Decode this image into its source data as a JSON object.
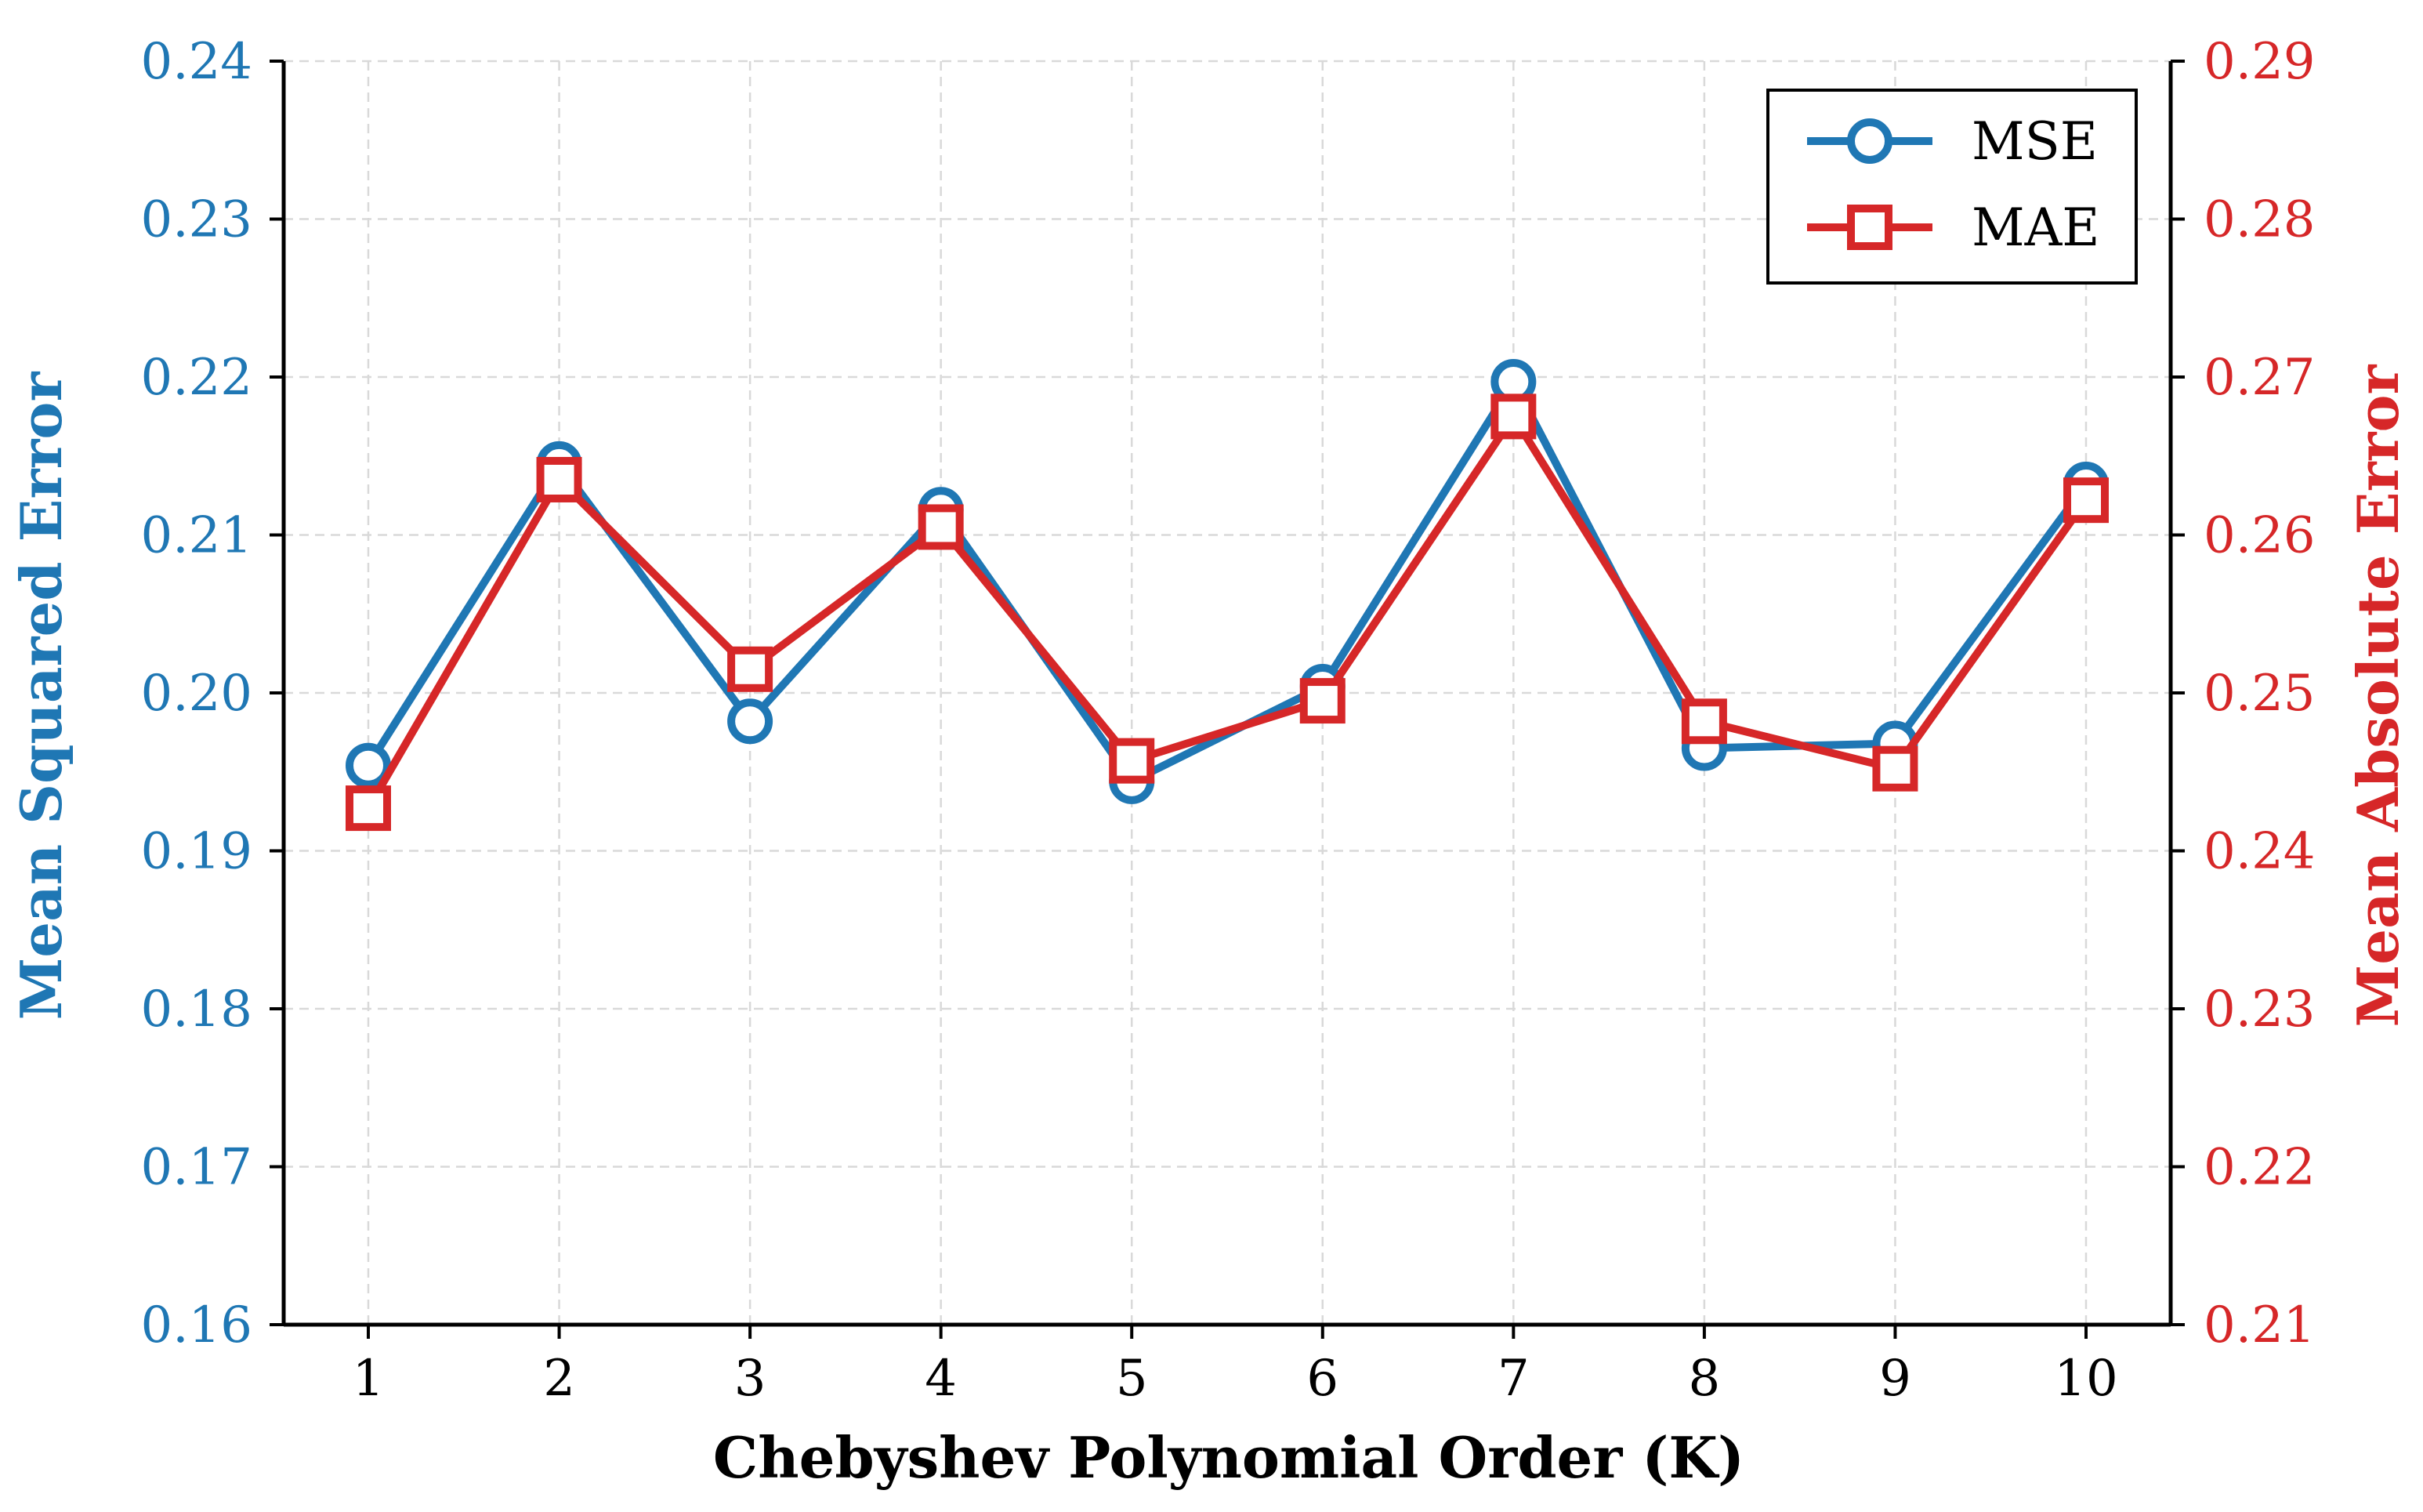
{
  "chart_data": {
    "type": "line",
    "xlabel": "Chebyshev Polynomial Order (K)",
    "x": [
      1,
      2,
      3,
      4,
      5,
      6,
      7,
      8,
      9,
      10
    ],
    "x_tick_labels": [
      "1",
      "2",
      "3",
      "4",
      "5",
      "6",
      "7",
      "8",
      "9",
      "10"
    ],
    "grid": true,
    "legend_position": "top-right",
    "left_axis": {
      "label": "Mean Squared Error",
      "ylim": [
        0.16,
        0.24
      ],
      "ticks": [
        0.16,
        0.17,
        0.18,
        0.19,
        0.2,
        0.21,
        0.22,
        0.23,
        0.24
      ],
      "tick_labels": [
        "0.16",
        "0.17",
        "0.18",
        "0.19",
        "0.20",
        "0.21",
        "0.22",
        "0.23",
        "0.24"
      ],
      "color": "#1f77b4"
    },
    "right_axis": {
      "label": "Mean Absolute Error",
      "ylim": [
        0.21,
        0.29
      ],
      "ticks": [
        0.21,
        0.22,
        0.23,
        0.24,
        0.25,
        0.26,
        0.27,
        0.28,
        0.29
      ],
      "tick_labels": [
        "0.21",
        "0.22",
        "0.23",
        "0.24",
        "0.25",
        "0.26",
        "0.27",
        "0.28",
        "0.29"
      ],
      "color": "#d62728"
    },
    "series": [
      {
        "name": "MSE",
        "axis": "left",
        "marker": "circle",
        "color": "#1f77b4",
        "values": [
          0.1954,
          0.2145,
          0.1982,
          0.2116,
          0.1944,
          0.2004,
          0.2197,
          0.1965,
          0.1968,
          0.2132
        ]
      },
      {
        "name": "MAE",
        "axis": "right",
        "marker": "square",
        "color": "#d62728",
        "values": [
          0.2427,
          0.2635,
          0.2515,
          0.2605,
          0.2457,
          0.2495,
          0.2675,
          0.2482,
          0.2452,
          0.2622
        ]
      }
    ]
  }
}
